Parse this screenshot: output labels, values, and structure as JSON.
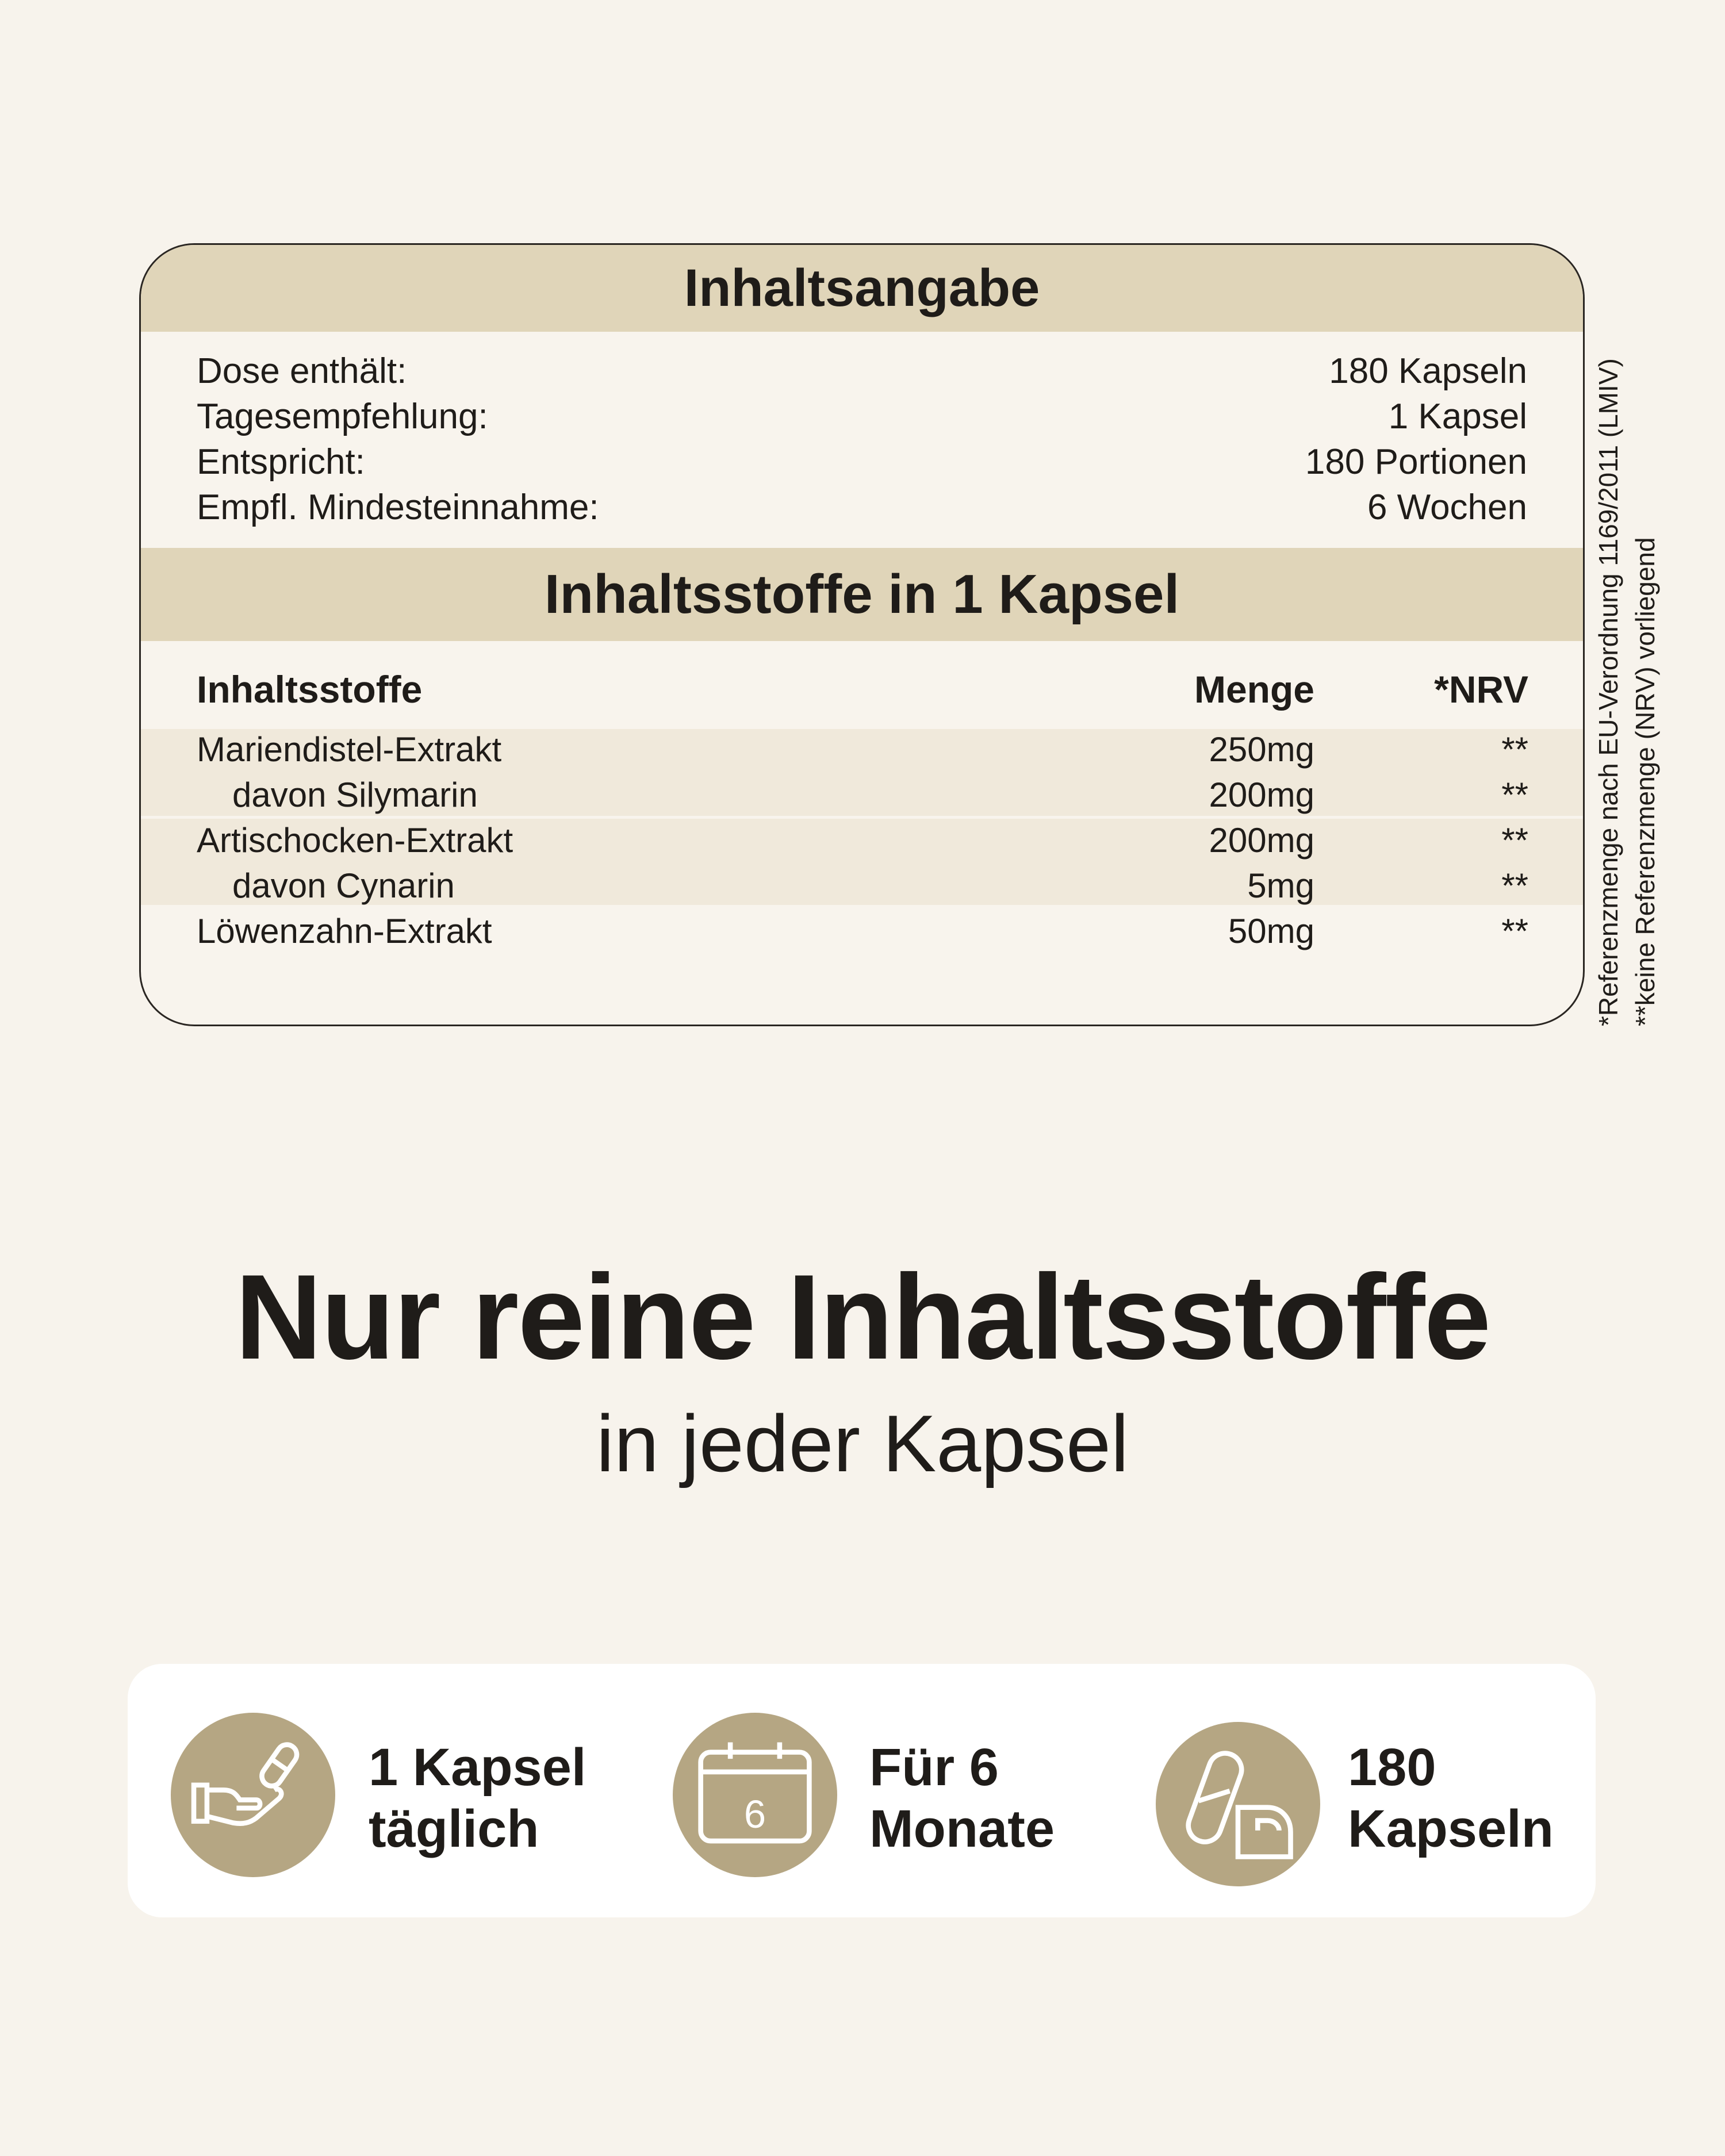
{
  "card": {
    "title": "Inhaltsangabe",
    "info": [
      {
        "label": "Dose enthält:",
        "value": "180 Kapseln"
      },
      {
        "label": "Tagesempfehlung:",
        "value": "1 Kapsel"
      },
      {
        "label": "Entspricht:",
        "value": "180 Portionen"
      },
      {
        "label": "Empfl. Mindesteinnahme:",
        "value": "6 Wochen"
      }
    ],
    "section_title": "Inhaltsstoffe in 1 Kapsel",
    "columns": [
      "Inhaltsstoffe",
      "Menge",
      "*NRV"
    ],
    "rows": [
      {
        "name": "Mariendistel-Extrakt",
        "amount": "250mg",
        "nrv": "**"
      },
      {
        "name": "davon Silymarin",
        "amount": "200mg",
        "nrv": "**"
      },
      {
        "name": "Artischocken-Extrakt",
        "amount": "200mg",
        "nrv": "**"
      },
      {
        "name": "davon Cynarin",
        "amount": "5mg",
        "nrv": "**"
      },
      {
        "name": "Löwenzahn-Extrakt",
        "amount": "50mg",
        "nrv": "**"
      }
    ]
  },
  "footnotes": [
    "*Referenzmenge nach EU-Verordnung 1169/2011 (LMIV)",
    "**keine Referenzmenge (NRV) vorliegend"
  ],
  "headline": "Nur reine Inhaltsstoffe",
  "subheadline": "in jeder Kapsel",
  "features": [
    {
      "icon": "hand-capsule-icon",
      "line1": "1 Kapsel",
      "line2": "täglich"
    },
    {
      "icon": "calendar-icon",
      "line1": "Für 6",
      "line2": "Monate",
      "calendar_number": "6"
    },
    {
      "icon": "capsules-icon",
      "line1": "180",
      "line2": "Kapseln"
    }
  ],
  "colors": {
    "background": "#f7f3ec",
    "band": "#e0d5b9",
    "icon_circle": "#b5a683"
  }
}
